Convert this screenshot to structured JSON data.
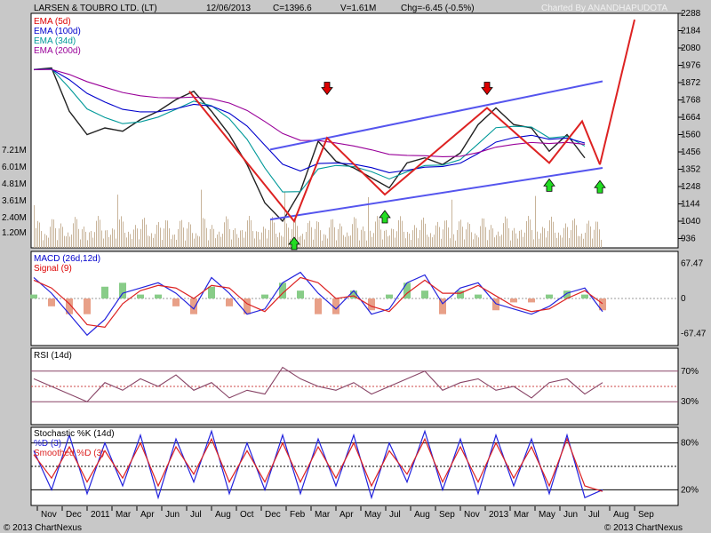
{
  "header": {
    "title": "LARSEN & TOUBRO LTD. (LT)",
    "date": "12/06/2013",
    "close": "C=1396.6",
    "volume": "V=1.61M",
    "change": "Chg=-6.45 (-0.5%)",
    "charted_by": "Charted By ANANDHAPUDOTA"
  },
  "footer": {
    "copyright_left": "© 2013 ChartNexus",
    "copyright_right": "© 2013 ChartNexus"
  },
  "colors": {
    "panel_bg": "#ffffff",
    "frame_bg": "#c8c8c8",
    "ema5": "#dd0000",
    "ema100": "#0000cc",
    "ema34": "#009999",
    "ema200": "#990099",
    "trendline_blue": "#5555ee",
    "zigzag_red": "#dd2222",
    "volume": "#c8b49a",
    "rsi": "#884466",
    "stoch_k": "#2222dd",
    "stoch_d": "#dd2222"
  },
  "chart_data": [
    {
      "type": "line",
      "panel": "price",
      "legend": [
        "EMA (5d)",
        "EMA (100d)",
        "EMA (34d)",
        "EMA (200d)"
      ],
      "x_ticks": [
        "Nov",
        "Dec",
        "2011",
        "Mar",
        "Apr",
        "Jun",
        "Jul",
        "Aug",
        "Oct",
        "Dec",
        "Feb",
        "Mar",
        "Apr",
        "May",
        "Jul",
        "Aug",
        "Sep",
        "Nov",
        "2013",
        "Mar",
        "May",
        "Jun",
        "Jul",
        "Aug",
        "Sep"
      ],
      "y_ticks": [
        2288,
        2184,
        2080,
        1976,
        1872,
        1768,
        1664,
        1560,
        1456,
        1352,
        1248,
        1144,
        1040,
        936
      ],
      "ylim": [
        880,
        2288
      ],
      "price_series": {
        "x": [
          0,
          20,
          40,
          60,
          80,
          100,
          120,
          140,
          160,
          180,
          200,
          220,
          240,
          260,
          280,
          300,
          320,
          340,
          360,
          380,
          400,
          420,
          440,
          460,
          480,
          500,
          520,
          540,
          560,
          580,
          600,
          620
        ],
        "close": [
          1950,
          1960,
          1700,
          1560,
          1600,
          1580,
          1650,
          1700,
          1770,
          1820,
          1700,
          1560,
          1380,
          1150,
          1040,
          1220,
          1520,
          1400,
          1360,
          1300,
          1240,
          1390,
          1420,
          1380,
          1450,
          1620,
          1720,
          1620,
          1600,
          1460,
          1560,
          1420
        ]
      },
      "zigzag": {
        "x": [
          175,
          293,
          330,
          395,
          510,
          580,
          617,
          637
        ],
        "y": [
          1820,
          1040,
          1540,
          1200,
          1720,
          1390,
          1640,
          1380
        ]
      },
      "projection": {
        "x": [
          637,
          676
        ],
        "y": [
          1380,
          2250
        ]
      },
      "upper_channel": {
        "x": [
          266,
          640
        ],
        "y": [
          1470,
          1880
        ]
      },
      "lower_channel": {
        "x": [
          266,
          640
        ],
        "y": [
          1050,
          1360
        ]
      },
      "down_arrows": [
        330,
        510
      ],
      "up_arrows": [
        293,
        395,
        580,
        637
      ],
      "volume_axis": [
        "7.21M",
        "6.01M",
        "4.81M",
        "3.61M",
        "2.40M",
        "1.20M"
      ]
    },
    {
      "type": "line",
      "panel": "macd",
      "legend": [
        "MACD (26d,12d)",
        "Signal (9)"
      ],
      "y_ticks": [
        "67.47",
        "0",
        "-67.47"
      ],
      "ylim": [
        -90,
        90
      ],
      "x": [
        0,
        20,
        40,
        60,
        80,
        100,
        120,
        140,
        160,
        180,
        200,
        220,
        240,
        260,
        280,
        300,
        320,
        340,
        360,
        380,
        400,
        420,
        440,
        460,
        480,
        500,
        520,
        540,
        560,
        580,
        600,
        620,
        640
      ],
      "macd": [
        40,
        10,
        -30,
        -70,
        -40,
        10,
        20,
        30,
        10,
        -20,
        40,
        10,
        -30,
        -20,
        30,
        50,
        10,
        -20,
        15,
        -30,
        -20,
        30,
        45,
        -10,
        20,
        30,
        -10,
        -20,
        -30,
        -15,
        10,
        20,
        -25
      ],
      "signal": [
        35,
        20,
        -10,
        -50,
        -55,
        -10,
        15,
        25,
        20,
        0,
        25,
        20,
        -10,
        -25,
        10,
        40,
        30,
        0,
        5,
        -15,
        -25,
        10,
        35,
        10,
        10,
        25,
        5,
        -15,
        -25,
        -20,
        0,
        15,
        -10
      ]
    },
    {
      "type": "line",
      "panel": "rsi",
      "legend": [
        "RSI (14d)"
      ],
      "y_ticks": [
        "70%",
        "30%"
      ],
      "ylim": [
        0,
        100
      ],
      "levels": [
        70,
        50,
        30
      ],
      "x": [
        0,
        20,
        40,
        60,
        80,
        100,
        120,
        140,
        160,
        180,
        200,
        220,
        240,
        260,
        280,
        300,
        320,
        340,
        360,
        380,
        400,
        420,
        440,
        460,
        480,
        500,
        520,
        540,
        560,
        580,
        600,
        620,
        640
      ],
      "rsi": [
        60,
        50,
        40,
        30,
        55,
        45,
        60,
        50,
        65,
        45,
        55,
        35,
        45,
        40,
        75,
        60,
        50,
        45,
        55,
        40,
        50,
        60,
        70,
        45,
        55,
        60,
        45,
        50,
        35,
        55,
        60,
        40,
        55
      ]
    },
    {
      "type": "line",
      "panel": "stochastic",
      "legend": [
        "Stochastic %K (14d)",
        "%D (3)",
        "Smoothed %D (3)"
      ],
      "y_ticks": [
        "80%",
        "20%"
      ],
      "ylim": [
        0,
        100
      ],
      "levels": [
        80,
        50,
        20
      ],
      "x": [
        0,
        20,
        40,
        60,
        80,
        100,
        120,
        140,
        160,
        180,
        200,
        220,
        240,
        260,
        280,
        300,
        320,
        340,
        360,
        380,
        400,
        420,
        440,
        460,
        480,
        500,
        520,
        540,
        560,
        580,
        600,
        620,
        640
      ],
      "k": [
        70,
        20,
        90,
        15,
        80,
        25,
        90,
        10,
        85,
        30,
        95,
        15,
        80,
        20,
        90,
        15,
        85,
        25,
        90,
        10,
        80,
        30,
        95,
        20,
        85,
        15,
        90,
        25,
        85,
        15,
        90,
        10,
        20
      ],
      "d": [
        65,
        35,
        75,
        30,
        70,
        35,
        80,
        25,
        75,
        40,
        85,
        30,
        70,
        30,
        80,
        30,
        75,
        35,
        80,
        25,
        70,
        40,
        85,
        30,
        75,
        30,
        80,
        35,
        75,
        25,
        85,
        25,
        18
      ]
    }
  ]
}
